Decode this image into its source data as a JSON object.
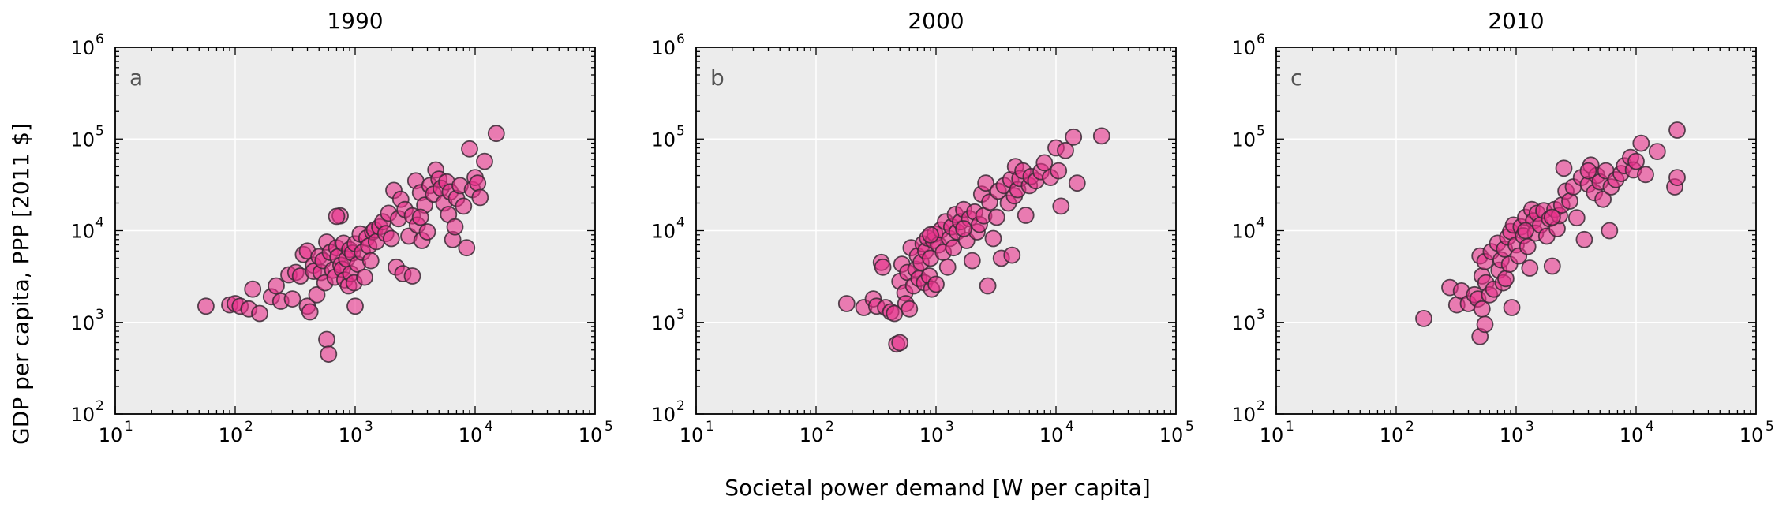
{
  "chart_data": {
    "type": "scatter",
    "xscale": "log",
    "yscale": "log",
    "xlim": [
      10,
      100000
    ],
    "ylim": [
      100,
      1000000
    ],
    "xlabel": "Societal power demand [W per capita]",
    "ylabel": "GDP per capita, PPP [2011 $]",
    "x_ticks": [
      {
        "base": "10",
        "exp": "1"
      },
      {
        "base": "10",
        "exp": "2"
      },
      {
        "base": "10",
        "exp": "3"
      },
      {
        "base": "10",
        "exp": "4"
      },
      {
        "base": "10",
        "exp": "5"
      }
    ],
    "y_ticks": [
      {
        "base": "10",
        "exp": "2"
      },
      {
        "base": "10",
        "exp": "3"
      },
      {
        "base": "10",
        "exp": "4"
      },
      {
        "base": "10",
        "exp": "5"
      },
      {
        "base": "10",
        "exp": "6"
      }
    ],
    "grid": true,
    "colors": {
      "background": "#ececec",
      "grid": "#ffffff",
      "marker_fill": "#e8318a",
      "marker_edge": "#3a2a35"
    },
    "panels": [
      {
        "title": "1990",
        "letter": "a",
        "points": [
          [
            57,
            1500
          ],
          [
            90,
            1550
          ],
          [
            100,
            1600
          ],
          [
            110,
            1500
          ],
          [
            130,
            1400
          ],
          [
            140,
            2300
          ],
          [
            160,
            1250
          ],
          [
            200,
            1900
          ],
          [
            220,
            2500
          ],
          [
            240,
            1700
          ],
          [
            280,
            3300
          ],
          [
            300,
            1800
          ],
          [
            320,
            3500
          ],
          [
            350,
            3200
          ],
          [
            370,
            5500
          ],
          [
            400,
            6000
          ],
          [
            400,
            1500
          ],
          [
            420,
            1300
          ],
          [
            450,
            4200
          ],
          [
            450,
            3600
          ],
          [
            480,
            2000
          ],
          [
            500,
            5200
          ],
          [
            520,
            3500
          ],
          [
            540,
            4700
          ],
          [
            560,
            2700
          ],
          [
            580,
            7500
          ],
          [
            580,
            650
          ],
          [
            600,
            450
          ],
          [
            620,
            5800
          ],
          [
            650,
            3700
          ],
          [
            680,
            3100
          ],
          [
            700,
            6500
          ],
          [
            720,
            5200
          ],
          [
            750,
            14500
          ],
          [
            760,
            4200
          ],
          [
            780,
            3800
          ],
          [
            800,
            7300
          ],
          [
            820,
            2900
          ],
          [
            850,
            4900
          ],
          [
            880,
            2500
          ],
          [
            900,
            6200
          ],
          [
            920,
            3400
          ],
          [
            950,
            5700
          ],
          [
            980,
            2700
          ],
          [
            1000,
            7200
          ],
          [
            1000,
            1500
          ],
          [
            1050,
            4300
          ],
          [
            1100,
            9200
          ],
          [
            1150,
            5800
          ],
          [
            1200,
            3100
          ],
          [
            1250,
            8300
          ],
          [
            1300,
            6800
          ],
          [
            1350,
            4700
          ],
          [
            1400,
            9700
          ],
          [
            1450,
            10200
          ],
          [
            1500,
            7600
          ],
          [
            1600,
            11000
          ],
          [
            1700,
            12500
          ],
          [
            1800,
            9300
          ],
          [
            1900,
            15500
          ],
          [
            2000,
            8200
          ],
          [
            2100,
            27500
          ],
          [
            2200,
            4000
          ],
          [
            2300,
            13500
          ],
          [
            2400,
            22000
          ],
          [
            2500,
            3400
          ],
          [
            2600,
            17000
          ],
          [
            2800,
            8700
          ],
          [
            3000,
            3200
          ],
          [
            3000,
            14500
          ],
          [
            3200,
            35000
          ],
          [
            3300,
            11500
          ],
          [
            3500,
            26000
          ],
          [
            3600,
            7800
          ],
          [
            3800,
            19000
          ],
          [
            4000,
            9700
          ],
          [
            4200,
            31000
          ],
          [
            4500,
            25000
          ],
          [
            4700,
            46000
          ],
          [
            5000,
            36500
          ],
          [
            5200,
            29000
          ],
          [
            5500,
            20000
          ],
          [
            5800,
            34000
          ],
          [
            6000,
            15000
          ],
          [
            6200,
            26500
          ],
          [
            6500,
            8000
          ],
          [
            6800,
            11000
          ],
          [
            7000,
            22500
          ],
          [
            7500,
            31000
          ],
          [
            8000,
            18500
          ],
          [
            8500,
            6500
          ],
          [
            9000,
            78000
          ],
          [
            9500,
            28000
          ],
          [
            10000,
            38000
          ],
          [
            10500,
            33000
          ],
          [
            11000,
            23000
          ],
          [
            12000,
            57000
          ],
          [
            15000,
            115000
          ],
          [
            700,
            14300
          ],
          [
            3500,
            14000
          ]
        ]
      },
      {
        "title": "2000",
        "letter": "b",
        "points": [
          [
            180,
            1600
          ],
          [
            250,
            1450
          ],
          [
            300,
            1800
          ],
          [
            320,
            1500
          ],
          [
            350,
            4500
          ],
          [
            360,
            4000
          ],
          [
            380,
            1450
          ],
          [
            420,
            1300
          ],
          [
            450,
            1250
          ],
          [
            470,
            580
          ],
          [
            500,
            600
          ],
          [
            500,
            2800
          ],
          [
            520,
            4300
          ],
          [
            550,
            2100
          ],
          [
            560,
            1600
          ],
          [
            580,
            3500
          ],
          [
            600,
            1400
          ],
          [
            620,
            6500
          ],
          [
            650,
            2500
          ],
          [
            680,
            3800
          ],
          [
            700,
            5300
          ],
          [
            720,
            3000
          ],
          [
            750,
            4500
          ],
          [
            780,
            7200
          ],
          [
            800,
            2700
          ],
          [
            820,
            6000
          ],
          [
            850,
            8300
          ],
          [
            880,
            3200
          ],
          [
            900,
            5000
          ],
          [
            920,
            2300
          ],
          [
            950,
            7800
          ],
          [
            980,
            9200
          ],
          [
            1000,
            2600
          ],
          [
            1050,
            7000
          ],
          [
            1100,
            10200
          ],
          [
            1150,
            5800
          ],
          [
            1200,
            12500
          ],
          [
            1250,
            4000
          ],
          [
            1300,
            8200
          ],
          [
            1350,
            11000
          ],
          [
            1400,
            6500
          ],
          [
            1450,
            15000
          ],
          [
            1500,
            9700
          ],
          [
            1600,
            12500
          ],
          [
            1700,
            17000
          ],
          [
            1800,
            7800
          ],
          [
            1900,
            13500
          ],
          [
            2000,
            4700
          ],
          [
            2100,
            16000
          ],
          [
            2200,
            9700
          ],
          [
            2300,
            11700
          ],
          [
            2400,
            25000
          ],
          [
            2500,
            14500
          ],
          [
            2600,
            33000
          ],
          [
            2700,
            2500
          ],
          [
            2800,
            20500
          ],
          [
            3000,
            8200
          ],
          [
            3200,
            14000
          ],
          [
            3300,
            27000
          ],
          [
            3500,
            5000
          ],
          [
            3700,
            31000
          ],
          [
            4000,
            20000
          ],
          [
            4200,
            36000
          ],
          [
            4500,
            24000
          ],
          [
            4600,
            50000
          ],
          [
            4800,
            28000
          ],
          [
            5000,
            37000
          ],
          [
            5300,
            45000
          ],
          [
            5600,
            14700
          ],
          [
            6000,
            31000
          ],
          [
            6200,
            39000
          ],
          [
            6800,
            35000
          ],
          [
            7500,
            44000
          ],
          [
            8000,
            55000
          ],
          [
            9000,
            38000
          ],
          [
            10000,
            80000
          ],
          [
            10500,
            45000
          ],
          [
            11000,
            18500
          ],
          [
            12000,
            75000
          ],
          [
            14000,
            105000
          ],
          [
            15000,
            33000
          ],
          [
            24000,
            108000
          ],
          [
            4300,
            5400
          ],
          [
            900,
            9000
          ],
          [
            1700,
            10500
          ]
        ]
      },
      {
        "title": "2010",
        "letter": "c",
        "points": [
          [
            170,
            1100
          ],
          [
            280,
            2400
          ],
          [
            320,
            1550
          ],
          [
            350,
            2200
          ],
          [
            400,
            1600
          ],
          [
            450,
            2000
          ],
          [
            480,
            1800
          ],
          [
            500,
            5300
          ],
          [
            500,
            700
          ],
          [
            520,
            1400
          ],
          [
            520,
            3200
          ],
          [
            550,
            4600
          ],
          [
            550,
            950
          ],
          [
            560,
            2700
          ],
          [
            600,
            2000
          ],
          [
            620,
            5900
          ],
          [
            650,
            2300
          ],
          [
            700,
            7300
          ],
          [
            720,
            3700
          ],
          [
            750,
            4800
          ],
          [
            780,
            2700
          ],
          [
            800,
            6300
          ],
          [
            820,
            3000
          ],
          [
            850,
            8500
          ],
          [
            880,
            4300
          ],
          [
            900,
            9800
          ],
          [
            920,
            1450
          ],
          [
            950,
            11500
          ],
          [
            1000,
            7000
          ],
          [
            1050,
            5300
          ],
          [
            1100,
            11000
          ],
          [
            1150,
            8800
          ],
          [
            1200,
            14000
          ],
          [
            1250,
            6700
          ],
          [
            1300,
            3900
          ],
          [
            1350,
            17000
          ],
          [
            1400,
            12800
          ],
          [
            1450,
            9400
          ],
          [
            1500,
            15500
          ],
          [
            1600,
            11500
          ],
          [
            1700,
            16500
          ],
          [
            1800,
            8700
          ],
          [
            1900,
            13500
          ],
          [
            2000,
            4100
          ],
          [
            2100,
            17000
          ],
          [
            2200,
            10500
          ],
          [
            2300,
            14600
          ],
          [
            2400,
            19000
          ],
          [
            2500,
            48000
          ],
          [
            2600,
            27000
          ],
          [
            2800,
            21000
          ],
          [
            3000,
            30000
          ],
          [
            3200,
            13800
          ],
          [
            3500,
            38000
          ],
          [
            3700,
            8000
          ],
          [
            4000,
            32000
          ],
          [
            4200,
            52000
          ],
          [
            4500,
            26000
          ],
          [
            4700,
            40000
          ],
          [
            5000,
            34000
          ],
          [
            5300,
            22000
          ],
          [
            5600,
            45000
          ],
          [
            6000,
            10000
          ],
          [
            6200,
            30000
          ],
          [
            6800,
            36000
          ],
          [
            7500,
            42000
          ],
          [
            8000,
            51000
          ],
          [
            9000,
            63000
          ],
          [
            9500,
            46000
          ],
          [
            10000,
            57000
          ],
          [
            11000,
            90000
          ],
          [
            12000,
            41000
          ],
          [
            15000,
            73000
          ],
          [
            21000,
            30000
          ],
          [
            22000,
            38000
          ],
          [
            22000,
            125000
          ],
          [
            4000,
            45000
          ],
          [
            1200,
            10000
          ],
          [
            2000,
            14000
          ]
        ]
      }
    ]
  }
}
